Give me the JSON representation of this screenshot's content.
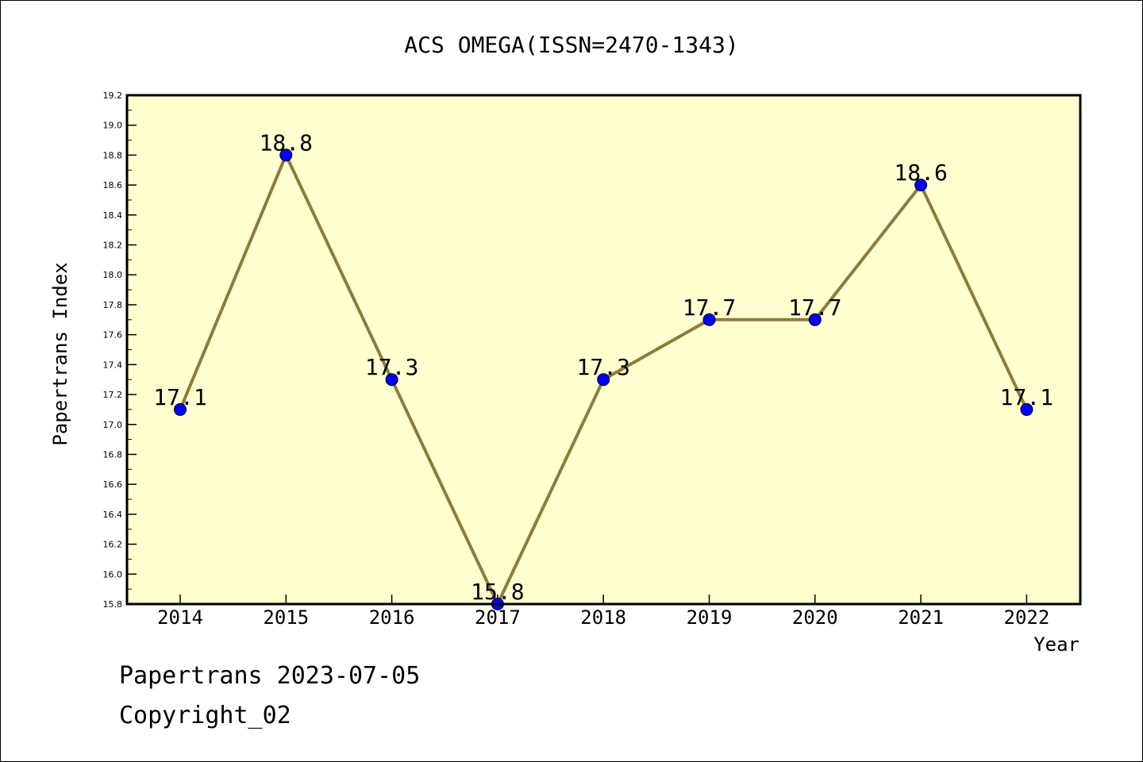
{
  "chart_data": {
    "type": "line",
    "title": "ACS OMEGA(ISSN=2470-1343)",
    "xlabel": "Year",
    "ylabel": "Papertrans Index",
    "x": [
      "2014",
      "2015",
      "2016",
      "2017",
      "2018",
      "2019",
      "2020",
      "2021",
      "2022"
    ],
    "series": [
      {
        "values": [
          17.1,
          18.8,
          17.3,
          15.8,
          17.3,
          17.7,
          17.7,
          18.6,
          17.1
        ],
        "data_labels": [
          "17.1",
          "18.8",
          "17.3",
          "15.8",
          "17.3",
          "17.7",
          "17.7",
          "18.6",
          "17.1"
        ]
      }
    ],
    "ylim": [
      15.8,
      19.2
    ],
    "yticks": [
      "15.8",
      "16.0",
      "16.2",
      "16.4",
      "16.6",
      "16.8",
      "17.0",
      "17.2",
      "17.4",
      "17.6",
      "17.8",
      "18.0",
      "18.2",
      "18.4",
      "18.6",
      "18.8",
      "19.0",
      "19.2"
    ],
    "grid": false,
    "legend": "none",
    "colors": {
      "plot_background": "#ffffd0",
      "line": "#8b7d3a",
      "marker": "#0000ff",
      "axis": "#000000"
    }
  },
  "footer": {
    "line1": "Papertrans 2023-07-05",
    "line2": "Copyright_02"
  }
}
